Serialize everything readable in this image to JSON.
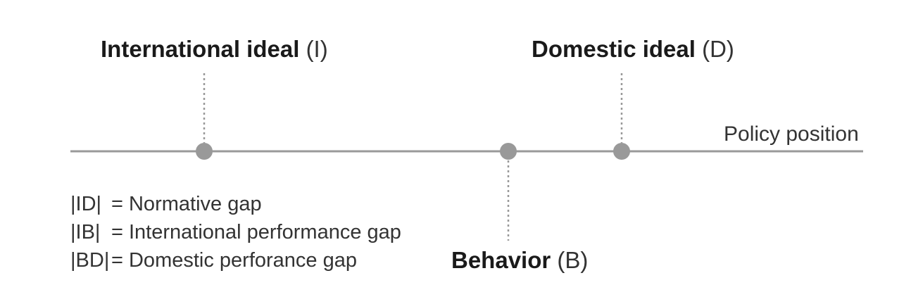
{
  "axis": {
    "label": "Policy position"
  },
  "points": {
    "international": {
      "name": "International ideal",
      "abbr": "(I)"
    },
    "domestic": {
      "name": "Domestic ideal",
      "abbr": "(D)"
    },
    "behavior": {
      "name": "Behavior",
      "abbr": "(B)"
    }
  },
  "legend": [
    {
      "term": "|ID|",
      "definition": "= Normative gap"
    },
    {
      "term": "|IB|",
      "definition": "= International performance gap"
    },
    {
      "term": "|BD|",
      "definition": "= Domestic perforance gap"
    }
  ],
  "colors": {
    "line": "#999999",
    "point": "#999999"
  }
}
